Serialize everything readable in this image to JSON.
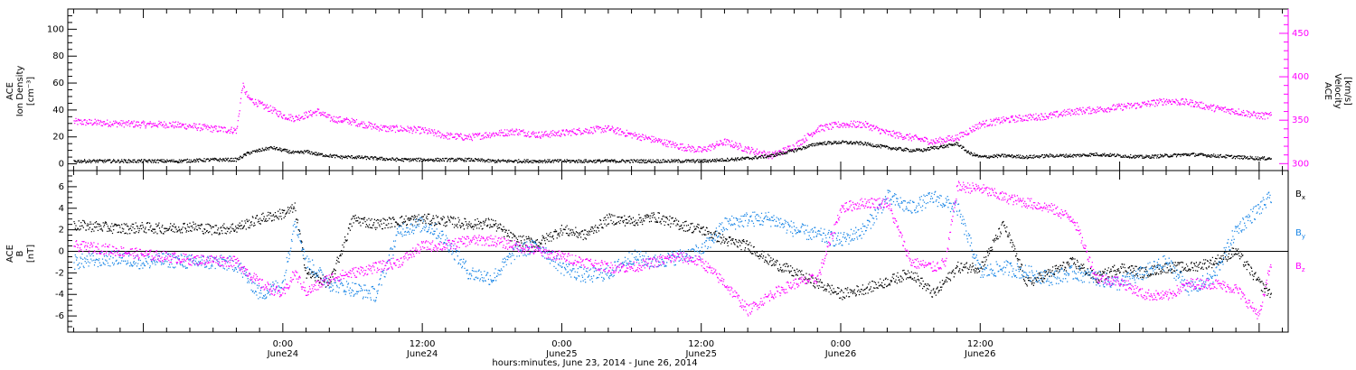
{
  "chart_data": [
    {
      "type": "scatter",
      "title": "",
      "xlabel": "hours:minutes, June 23, 2014 - June 26, 2014",
      "ylabel_left": [
        "ACE",
        "Ion Density",
        "[cm⁻³]"
      ],
      "ylabel_right": [
        "ACE",
        "Velocity",
        "[km/s]"
      ],
      "xlim_hours": [
        -18.5,
        86.5
      ],
      "ylim_left": [
        -5,
        115
      ],
      "ylim_right": [
        292,
        478
      ],
      "yticks_left": [
        0,
        20,
        40,
        60,
        80,
        100
      ],
      "yticks_right": [
        300,
        350,
        400,
        450
      ],
      "colors": {
        "density": "#000000",
        "velocity": "#ff00ff"
      },
      "series": [
        {
          "axis": "left",
          "color": "#000000",
          "x": [
            -18,
            -15,
            -12,
            -9,
            -6,
            -4,
            -3,
            -2,
            -1,
            0,
            1,
            2,
            3,
            4,
            5,
            6,
            8,
            10,
            12,
            14,
            16,
            18,
            20,
            22,
            24,
            26,
            28,
            30,
            32,
            34,
            36,
            38,
            40,
            42,
            44,
            46,
            48,
            50,
            52,
            54,
            55,
            56,
            57,
            58,
            59,
            60,
            62,
            64,
            66,
            68,
            70,
            72,
            74,
            76,
            78,
            80,
            82,
            84,
            85
          ],
          "y": [
            2,
            2,
            2,
            2,
            3,
            3,
            8,
            10,
            12,
            10,
            8,
            9,
            7,
            6,
            5,
            5,
            4,
            3,
            3,
            3,
            3,
            2,
            2,
            2,
            2,
            2,
            2,
            2,
            2,
            2,
            2,
            3,
            4,
            6,
            10,
            15,
            16,
            15,
            12,
            10,
            10,
            12,
            13,
            15,
            8,
            5,
            6,
            5,
            6,
            6,
            7,
            6,
            5,
            6,
            7,
            6,
            5,
            4,
            4
          ]
        },
        {
          "axis": "right",
          "color": "#ff00ff",
          "x": [
            -18,
            -16,
            -14,
            -12,
            -10,
            -8,
            -6,
            -4,
            -3.5,
            -3,
            -2,
            -1,
            0,
            1,
            2,
            3,
            4,
            5,
            6,
            7,
            8,
            9,
            10,
            12,
            14,
            16,
            18,
            20,
            22,
            24,
            26,
            28,
            30,
            32,
            34,
            36,
            38,
            40,
            42,
            44,
            46,
            48,
            50,
            52,
            54,
            56,
            58,
            60,
            62,
            64,
            66,
            68,
            70,
            72,
            74,
            76,
            78,
            80,
            82,
            84,
            85
          ],
          "y": [
            348,
            347,
            346,
            345,
            345,
            343,
            340,
            338,
            390,
            375,
            368,
            362,
            355,
            352,
            356,
            360,
            352,
            350,
            348,
            345,
            342,
            340,
            340,
            338,
            332,
            330,
            334,
            337,
            333,
            335,
            338,
            340,
            333,
            327,
            320,
            315,
            325,
            316,
            309,
            320,
            340,
            345,
            345,
            335,
            330,
            325,
            330,
            345,
            350,
            353,
            355,
            360,
            362,
            365,
            368,
            372,
            370,
            364,
            360,
            355,
            355
          ]
        }
      ]
    },
    {
      "type": "scatter",
      "title": "",
      "xlabel": "hours:minutes, June 23, 2014 - June 26, 2014",
      "ylabel_left": [
        "ACE",
        "B",
        "[nT]"
      ],
      "xlim_hours": [
        -18.5,
        86.5
      ],
      "ylim": [
        -7.5,
        7.5
      ],
      "yticks": [
        -6,
        -4,
        -2,
        0,
        2,
        4,
        6
      ],
      "zero_line": true,
      "colors": {
        "Bx": "#000000",
        "By": "#1a86e6",
        "Bz": "#ff00ff"
      },
      "legend_position": "right",
      "series": [
        {
          "name": "Bx",
          "color": "#000000",
          "x": [
            -18,
            -16,
            -14,
            -12,
            -10,
            -8,
            -6,
            -4,
            -2,
            0,
            1,
            2,
            4,
            6,
            8,
            10,
            12,
            14,
            16,
            18,
            20,
            22,
            24,
            26,
            28,
            30,
            32,
            34,
            36,
            38,
            40,
            42,
            44,
            46,
            48,
            50,
            52,
            54,
            56,
            58,
            60,
            62,
            64,
            66,
            68,
            70,
            72,
            74,
            76,
            78,
            80,
            82,
            84,
            85
          ],
          "y": [
            2.4,
            2.3,
            2.1,
            2.2,
            2.1,
            2.3,
            2.0,
            2.2,
            3.0,
            3.5,
            4.0,
            -2,
            -3,
            3,
            2.5,
            2.8,
            3,
            2.8,
            2.5,
            2.6,
            1,
            0.8,
            2,
            1.5,
            3,
            2.8,
            3.2,
            2.5,
            2.0,
            1,
            0.5,
            -1,
            -2,
            -3,
            -4,
            -3.5,
            -2.8,
            -2,
            -4,
            -1.5,
            -1.5,
            2.5,
            -3,
            -2,
            -1,
            -2.5,
            -1.5,
            -2,
            -1.5,
            -1.5,
            -1,
            0,
            -3,
            -4
          ]
        },
        {
          "name": "By",
          "color": "#1a86e6",
          "x": [
            -18,
            -16,
            -14,
            -12,
            -10,
            -8,
            -6,
            -4,
            -2,
            0,
            1,
            2,
            3,
            4,
            6,
            8,
            10,
            12,
            13,
            14,
            16,
            18,
            20,
            22,
            24,
            26,
            28,
            30,
            32,
            34,
            36,
            38,
            40,
            42,
            44,
            46,
            48,
            50,
            52,
            54,
            56,
            58,
            60,
            62,
            64,
            66,
            68,
            70,
            72,
            74,
            76,
            78,
            80,
            82,
            84,
            85
          ],
          "y": [
            -1,
            -0.8,
            -0.6,
            -1,
            -0.8,
            -1,
            -1,
            -1.2,
            -4,
            -3,
            3,
            -1,
            -2,
            -3,
            -3.5,
            -4,
            2,
            2.5,
            2,
            1,
            -2,
            -2.5,
            0,
            0.5,
            -1.5,
            -2.3,
            -2,
            -0.5,
            -1,
            -0.5,
            0,
            2.5,
            3,
            3,
            2,
            1.5,
            1,
            2,
            5,
            4,
            5,
            4,
            -2,
            -1.5,
            -2,
            -2.5,
            -2,
            -2.5,
            -3,
            -2,
            -1,
            -3.5,
            -2.5,
            2,
            4,
            5
          ]
        },
        {
          "name": "Bz",
          "color": "#ff00ff",
          "x": [
            -18,
            -16,
            -14,
            -12,
            -10,
            -8,
            -6,
            -4,
            -2,
            -1,
            0,
            1,
            2,
            4,
            6,
            8,
            10,
            12,
            14,
            16,
            18,
            20,
            22,
            24,
            26,
            28,
            30,
            32,
            34,
            36,
            38,
            40,
            42,
            44,
            46,
            48,
            50,
            52,
            54,
            56,
            57,
            58,
            60,
            62,
            64,
            66,
            68,
            70,
            72,
            74,
            76,
            78,
            80,
            82,
            84,
            85
          ],
          "y": [
            0.5,
            0.3,
            0,
            -0.3,
            -0.5,
            -0.8,
            -0.8,
            -1,
            -3,
            -3.5,
            -4,
            -2,
            -3.8,
            -2.5,
            -2,
            -1.5,
            -1,
            0.5,
            0.5,
            1,
            1,
            0.5,
            0,
            -0.5,
            -1,
            -1.5,
            -1.5,
            -1,
            -0.5,
            -1,
            -3,
            -5.5,
            -4,
            -3,
            -2.5,
            4,
            4.5,
            4.5,
            -1,
            -1.5,
            -1,
            6,
            5.8,
            5,
            4.5,
            4,
            3,
            -2.5,
            -2.8,
            -4,
            -4.2,
            -3,
            -3,
            -3.5,
            -6,
            -1
          ]
        }
      ]
    }
  ],
  "xaxis": {
    "major_ticks": [
      {
        "hour": 0,
        "label": "0:00",
        "sublabel": "June24"
      },
      {
        "hour": 12,
        "label": "12:00",
        "sublabel": "June24"
      },
      {
        "hour": 24,
        "label": "0:00",
        "sublabel": "June25"
      },
      {
        "hour": 36,
        "label": "12:00",
        "sublabel": "June25"
      },
      {
        "hour": 48,
        "label": "0:00",
        "sublabel": "June26"
      },
      {
        "hour": 60,
        "label": "12:00",
        "sublabel": "June26"
      }
    ],
    "title": "hours:minutes, June 23, 2014 - June 26, 2014"
  },
  "legend": {
    "bx": "B",
    "bx_sub": "x",
    "by": "B",
    "by_sub": "y",
    "bz": "B",
    "bz_sub": "z"
  }
}
